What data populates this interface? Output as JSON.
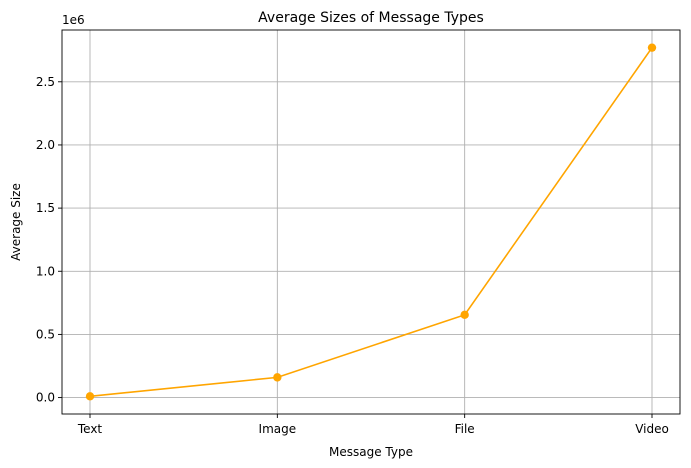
{
  "chart_data": {
    "type": "line",
    "title": "Average Sizes of Message Types",
    "xlabel": "Message Type",
    "ylabel": "Average Size",
    "y_scale_label": "1e6",
    "categories": [
      "Text",
      "Image",
      "File",
      "Video"
    ],
    "series": [
      {
        "name": "Average Size",
        "values": [
          10000,
          160000,
          655000,
          2770000
        ],
        "color": "#FFA500",
        "marker": "circle"
      }
    ],
    "ylim": [
      -130000,
      2910000
    ],
    "yticks": [
      0,
      500000,
      1000000,
      1500000,
      2000000,
      2500000
    ],
    "ytick_labels": [
      "0.0",
      "0.5",
      "1.0",
      "1.5",
      "2.0",
      "2.5"
    ],
    "grid": true
  }
}
